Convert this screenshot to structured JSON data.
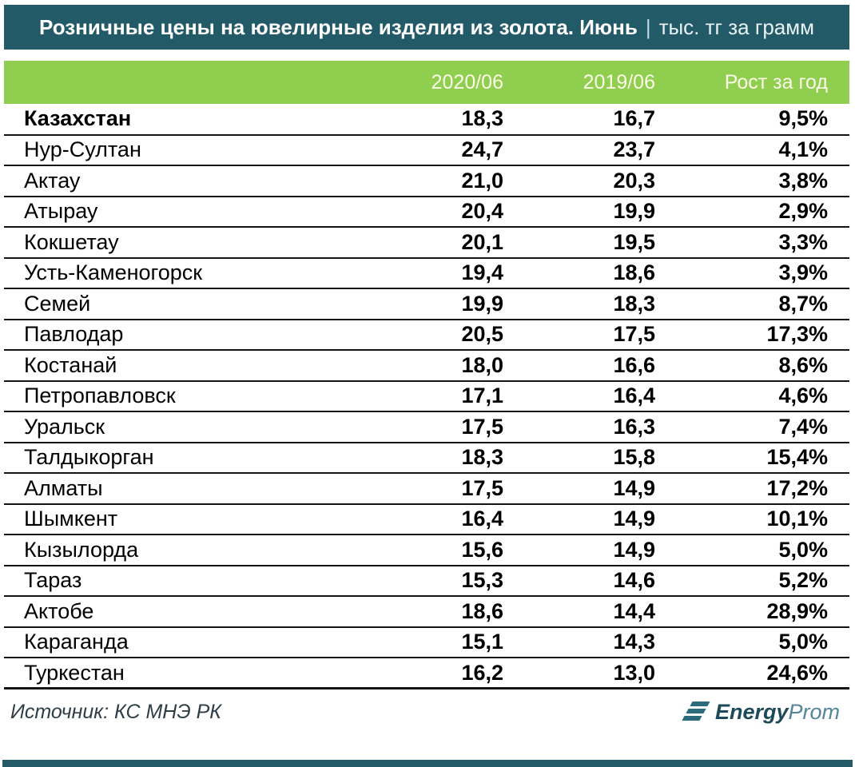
{
  "title": {
    "main": "Розничные цены на ювелирные изделия из золота. Июнь",
    "separator": "|",
    "unit": "тыс. тг за грамм"
  },
  "table": {
    "columns": [
      "2020/06",
      "2019/06",
      "Рост за год"
    ],
    "rows": [
      {
        "name": "Казахстан",
        "v2020": "18,3",
        "v2019": "16,7",
        "growth": "9,5%",
        "total": true
      },
      {
        "name": "Нур-Султан",
        "v2020": "24,7",
        "v2019": "23,7",
        "growth": "4,1%"
      },
      {
        "name": "Актау",
        "v2020": "21,0",
        "v2019": "20,3",
        "growth": "3,8%"
      },
      {
        "name": "Атырау",
        "v2020": "20,4",
        "v2019": "19,9",
        "growth": "2,9%"
      },
      {
        "name": "Кокшетау",
        "v2020": "20,1",
        "v2019": "19,5",
        "growth": "3,3%"
      },
      {
        "name": "Усть-Каменогорск",
        "v2020": "19,4",
        "v2019": "18,6",
        "growth": "3,9%"
      },
      {
        "name": "Семей",
        "v2020": "19,9",
        "v2019": "18,3",
        "growth": "8,7%"
      },
      {
        "name": "Павлодар",
        "v2020": "20,5",
        "v2019": "17,5",
        "growth": "17,3%"
      },
      {
        "name": "Костанай",
        "v2020": "18,0",
        "v2019": "16,6",
        "growth": "8,6%"
      },
      {
        "name": "Петропавловск",
        "v2020": "17,1",
        "v2019": "16,4",
        "growth": "4,6%"
      },
      {
        "name": "Уральск",
        "v2020": "17,5",
        "v2019": "16,3",
        "growth": "7,4%"
      },
      {
        "name": "Талдыкорган",
        "v2020": "18,3",
        "v2019": "15,8",
        "growth": "15,4%"
      },
      {
        "name": "Алматы",
        "v2020": "17,5",
        "v2019": "14,9",
        "growth": "17,2%"
      },
      {
        "name": "Шымкент",
        "v2020": "16,4",
        "v2019": "14,9",
        "growth": "10,1%"
      },
      {
        "name": "Кызылорда",
        "v2020": "15,6",
        "v2019": "14,9",
        "growth": "5,0%"
      },
      {
        "name": "Тараз",
        "v2020": "15,3",
        "v2019": "14,6",
        "growth": "5,2%"
      },
      {
        "name": "Актобе",
        "v2020": "18,6",
        "v2019": "14,4",
        "growth": "28,9%"
      },
      {
        "name": "Караганда",
        "v2020": "15,1",
        "v2019": "14,3",
        "growth": "5,0%"
      },
      {
        "name": "Туркестан",
        "v2020": "16,2",
        "v2019": "13,0",
        "growth": "24,6%"
      }
    ]
  },
  "footer": {
    "source": "Источник: КС МНЭ РК",
    "logo_bold": "Energy",
    "logo_light": "Prom"
  },
  "colors": {
    "header_teal": "#235a68",
    "accent_green": "#8fce4e",
    "header_text": "#fcfce9",
    "row_border": "#141414",
    "logo_dark_teal": "#1d4a59",
    "logo_light_teal": "#55849b"
  },
  "chart_data": {
    "type": "table",
    "title": "Розничные цены на ювелирные изделия из золота. Июнь",
    "unit": "тыс. тг за грамм",
    "columns": [
      "",
      "2020/06",
      "2019/06",
      "Рост за год"
    ],
    "rows": [
      [
        "Казахстан",
        18.3,
        16.7,
        9.5
      ],
      [
        "Нур-Султан",
        24.7,
        23.7,
        4.1
      ],
      [
        "Актау",
        21.0,
        20.3,
        3.8
      ],
      [
        "Атырау",
        20.4,
        19.9,
        2.9
      ],
      [
        "Кокшетау",
        20.1,
        19.5,
        3.3
      ],
      [
        "Усть-Каменогорск",
        19.4,
        18.6,
        3.9
      ],
      [
        "Семей",
        19.9,
        18.3,
        8.7
      ],
      [
        "Павлодар",
        20.5,
        17.5,
        17.3
      ],
      [
        "Костанай",
        18.0,
        16.6,
        8.6
      ],
      [
        "Петропавловск",
        17.1,
        16.4,
        4.6
      ],
      [
        "Уральск",
        17.5,
        16.3,
        7.4
      ],
      [
        "Талдыкорган",
        18.3,
        15.8,
        15.4
      ],
      [
        "Алматы",
        17.5,
        14.9,
        17.2
      ],
      [
        "Шымкент",
        16.4,
        14.9,
        10.1
      ],
      [
        "Кызылорда",
        15.6,
        14.9,
        5.0
      ],
      [
        "Тараз",
        15.3,
        14.6,
        5.2
      ],
      [
        "Актобе",
        18.6,
        14.4,
        28.9
      ],
      [
        "Караганда",
        15.1,
        14.3,
        5.0
      ],
      [
        "Туркестан",
        16.2,
        13.0,
        24.6
      ]
    ],
    "growth_unit": "%"
  }
}
